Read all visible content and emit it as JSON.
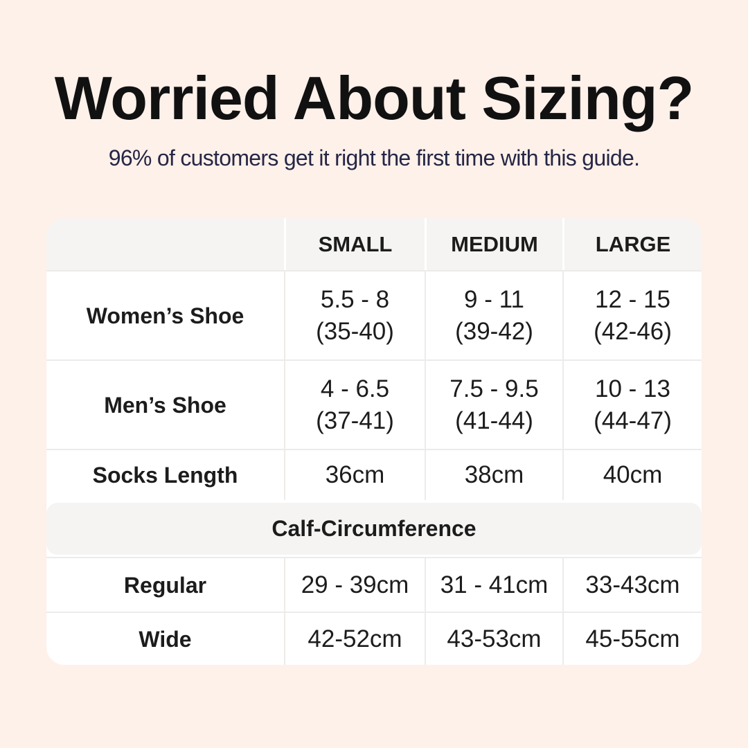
{
  "chart_data": {
    "type": "table",
    "title": "Worried About Sizing?",
    "subtitle": "96% of customers get it right the first time with this guide.",
    "header": {
      "col0": "",
      "col1": "SMALL",
      "col2": "MEDIUM",
      "col3": "LARGE"
    },
    "shoe_rows": [
      {
        "label": "Women’s Shoe",
        "small": {
          "line1": "5.5 - 8",
          "line2": "(35-40)"
        },
        "medium": {
          "line1": "9 - 11",
          "line2": "(39-42)"
        },
        "large": {
          "line1": "12 - 15",
          "line2": "(42-46)"
        }
      },
      {
        "label": "Men’s Shoe",
        "small": {
          "line1": "4 - 6.5",
          "line2": "(37-41)"
        },
        "medium": {
          "line1": "7.5 - 9.5",
          "line2": "(41-44)"
        },
        "large": {
          "line1": "10 - 13",
          "line2": "(44-47)"
        }
      }
    ],
    "socks_row": {
      "label": "Socks Length",
      "small": "36cm",
      "medium": "38cm",
      "large": "40cm"
    },
    "section_header": "Calf-Circumference",
    "calf_rows": [
      {
        "label": "Regular",
        "small": "29 - 39cm",
        "medium": "31 - 41cm",
        "large": "33-43cm"
      },
      {
        "label": "Wide",
        "small": "42-52cm",
        "medium": "43-53cm",
        "large": "45-55cm"
      }
    ],
    "colors": {
      "background": "#fdf1ea",
      "table_background": "#ffffff",
      "band_background": "#f5f4f3",
      "title_text": "#111111",
      "subtitle_text": "#262645",
      "cell_text": "#1c1c1c",
      "divider": "#edebe9"
    }
  }
}
